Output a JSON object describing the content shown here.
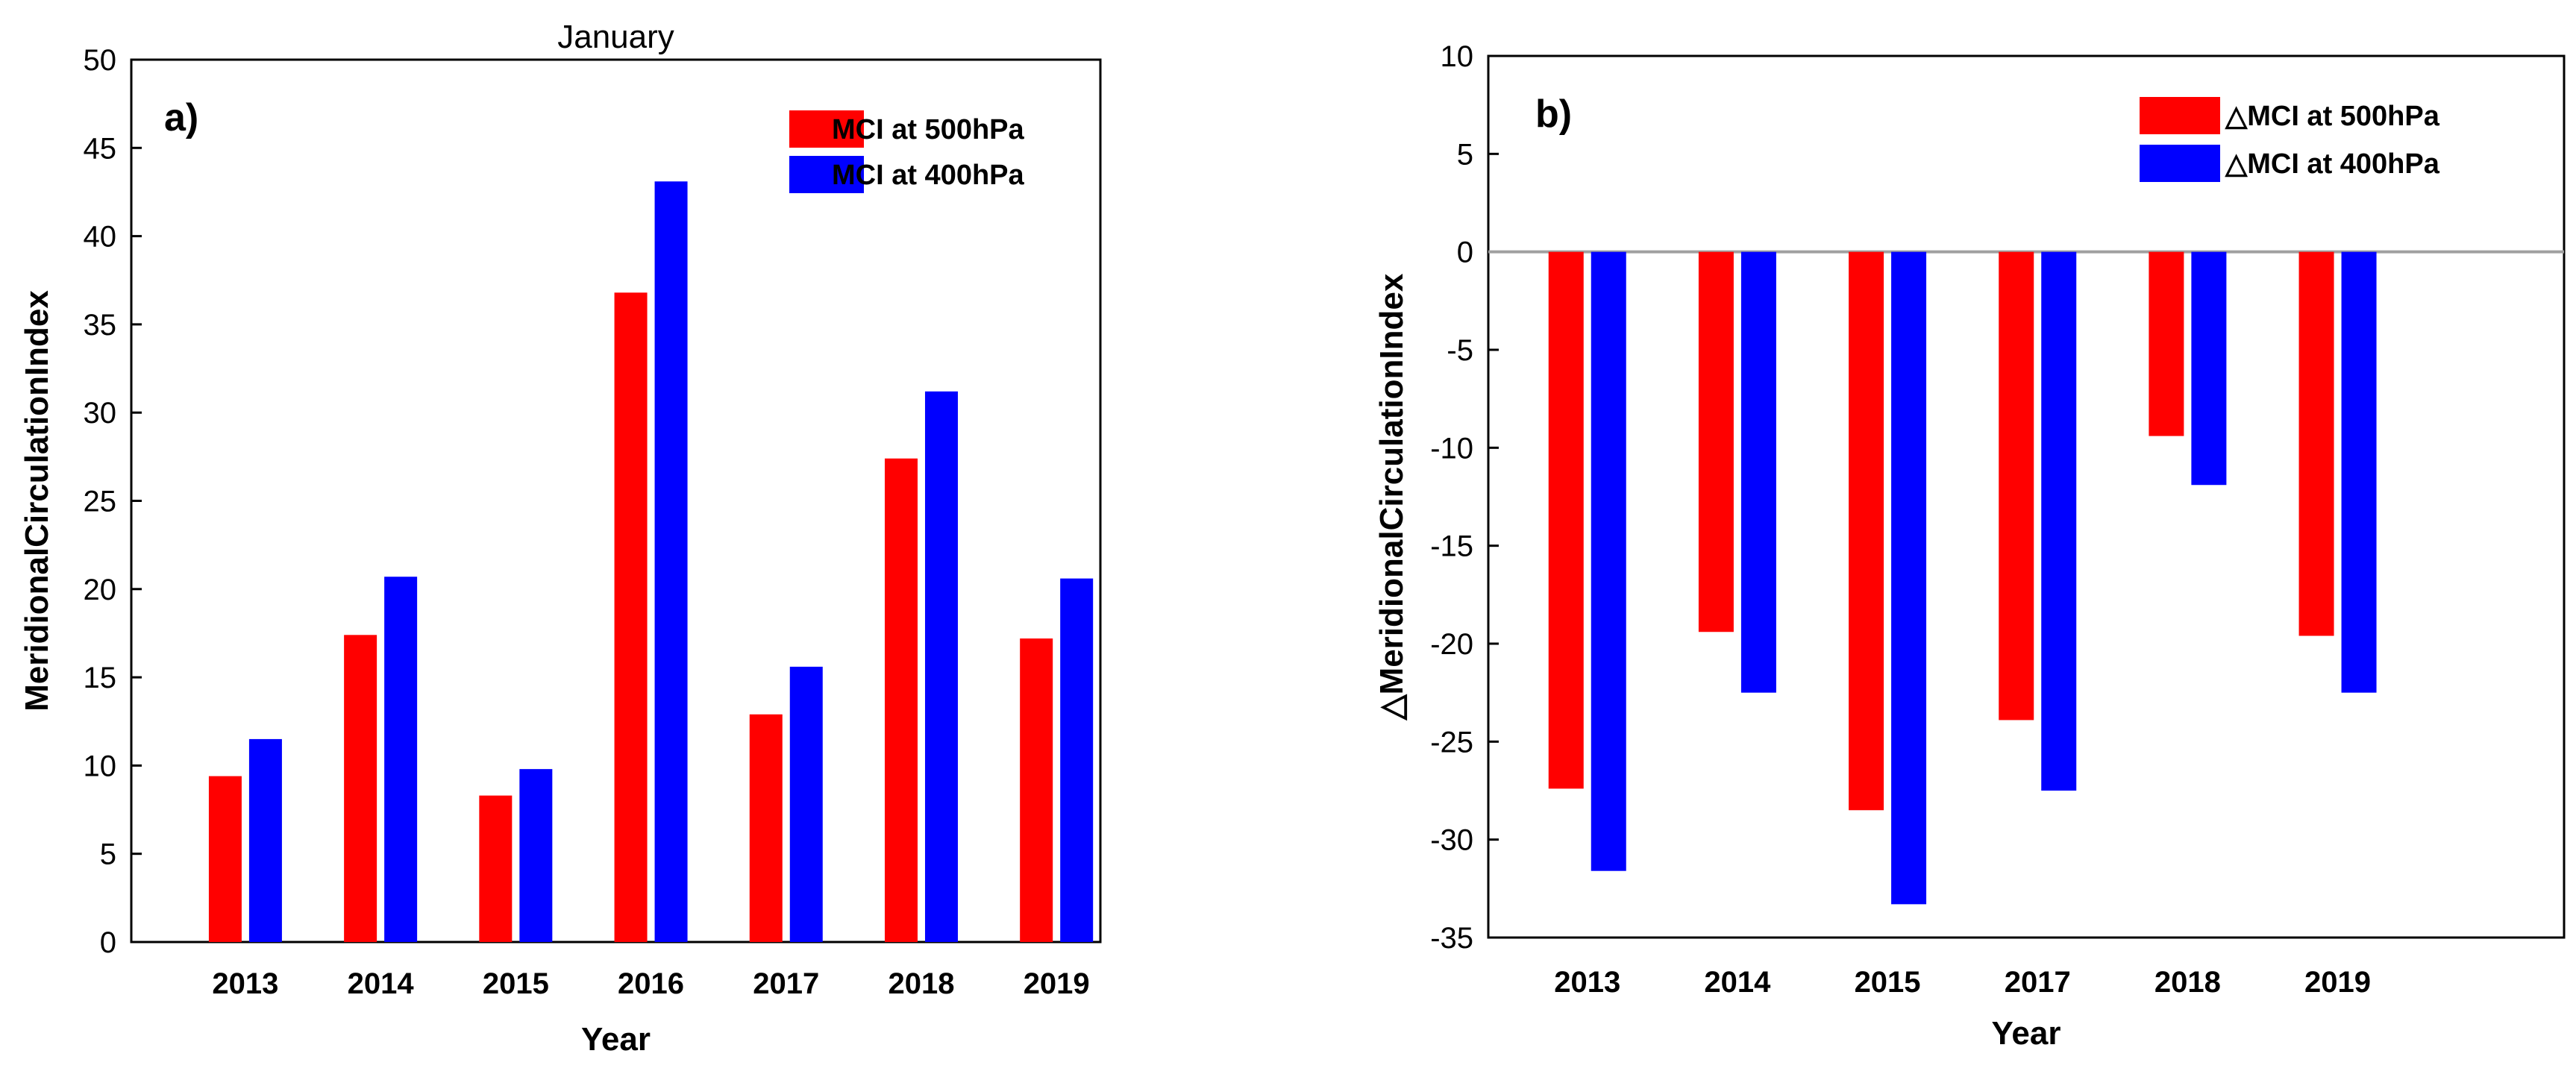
{
  "colors": {
    "s500": "#ff0000",
    "s400": "#0000ff",
    "axis": "#000000",
    "zero": "#a0a0a0"
  },
  "chart_data": [
    {
      "type": "bar",
      "panel_label": "a)",
      "title": "January",
      "xlabel": "Year",
      "ylabel": "MeridionalCirculationIndex",
      "ylim": [
        0,
        50
      ],
      "yticks": [
        "0",
        "5",
        "10",
        "15",
        "20",
        "25",
        "30",
        "35",
        "40",
        "45",
        "50"
      ],
      "categories": [
        "2013",
        "2014",
        "2015",
        "2016",
        "2017",
        "2018",
        "2019"
      ],
      "series": [
        {
          "name": "MCI at 500hPa",
          "color": "#ff0000",
          "values": [
            9.4,
            17.4,
            8.3,
            36.8,
            12.9,
            27.4,
            17.2
          ]
        },
        {
          "name": "MCI at 400hPa",
          "color": "#0000ff",
          "values": [
            11.5,
            20.7,
            9.8,
            43.1,
            15.6,
            31.2,
            20.6
          ]
        }
      ],
      "legend_position": "top-right"
    },
    {
      "type": "bar",
      "panel_label": "b)",
      "title": "",
      "xlabel": "Year",
      "ylabel": "△MeridionalCirculationIndex",
      "ylim": [
        -35,
        10
      ],
      "yticks": [
        "-35",
        "-30",
        "-25",
        "-20",
        "-15",
        "-10",
        "-5",
        "0",
        "5",
        "10"
      ],
      "categories": [
        "2013",
        "2014",
        "2015",
        "2017",
        "2018",
        "2019"
      ],
      "series": [
        {
          "name": "△MCI at 500hPa",
          "color": "#ff0000",
          "values": [
            -27.4,
            -19.4,
            -28.5,
            -23.9,
            -9.4,
            -19.6
          ]
        },
        {
          "name": "△MCI at 400hPa",
          "color": "#0000ff",
          "values": [
            -31.6,
            -22.5,
            -33.3,
            -27.5,
            -11.9,
            -22.5
          ]
        }
      ],
      "legend_position": "top-right"
    }
  ]
}
